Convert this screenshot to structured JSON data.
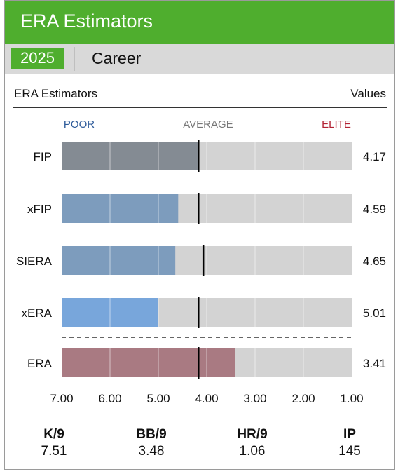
{
  "header": {
    "title": "ERA Estimators"
  },
  "tabs": [
    {
      "label": "2025",
      "active": true
    },
    {
      "label": "Career",
      "active": false
    }
  ],
  "table_header": {
    "left": "ERA Estimators",
    "right": "Values"
  },
  "colors": {
    "brand_green": "#4fae2e",
    "poor": "#2e5b9a",
    "average": "#777777",
    "elite": "#b22234",
    "track": "#d3d3d3"
  },
  "chart_data": {
    "type": "bar",
    "orientation": "horizontal",
    "scale_labels": {
      "poor": "POOR",
      "average": "AVERAGE",
      "elite": "ELITE"
    },
    "x_axis": {
      "reversed": true,
      "min": 1.0,
      "max": 7.0,
      "ticks": [
        "7.00",
        "6.00",
        "5.00",
        "4.00",
        "3.00",
        "2.00",
        "1.00"
      ]
    },
    "grid": true,
    "rows": [
      {
        "label": "FIP",
        "value": 4.17,
        "display": "4.17",
        "league_avg": 4.17,
        "color": "#848b93"
      },
      {
        "label": "xFIP",
        "value": 4.59,
        "display": "4.59",
        "league_avg": 4.17,
        "color": "#7d9cbd"
      },
      {
        "label": "SIERA",
        "value": 4.65,
        "display": "4.65",
        "league_avg": 4.07,
        "color": "#7d9cbd"
      },
      {
        "label": "xERA",
        "value": 5.01,
        "display": "5.01",
        "league_avg": 4.17,
        "color": "#78a6db"
      },
      {
        "label": "ERA",
        "value": 3.41,
        "display": "3.41",
        "league_avg": 4.17,
        "color": "#a97a82"
      }
    ],
    "separator_before_index": 4
  },
  "stats": [
    {
      "label": "K/9",
      "value": "7.51"
    },
    {
      "label": "BB/9",
      "value": "3.48"
    },
    {
      "label": "HR/9",
      "value": "1.06"
    },
    {
      "label": "IP",
      "value": "145"
    }
  ]
}
